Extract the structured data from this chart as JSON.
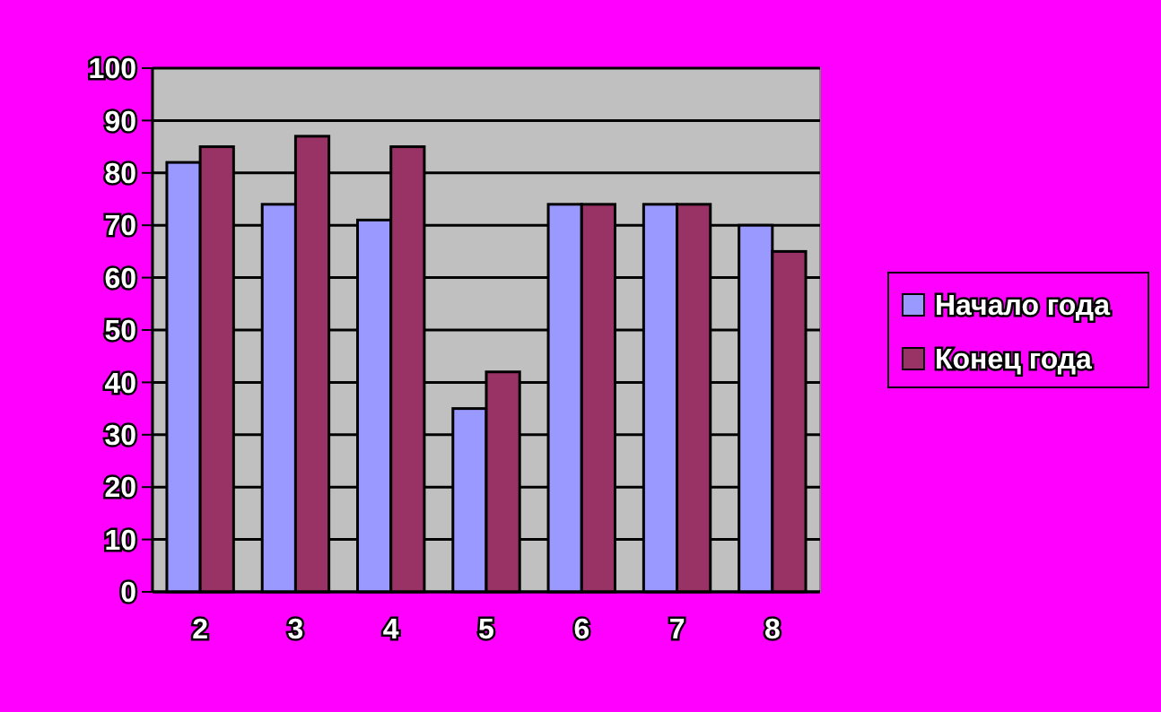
{
  "chart_data": {
    "type": "bar",
    "categories": [
      "2",
      "3",
      "4",
      "5",
      "6",
      "7",
      "8"
    ],
    "series": [
      {
        "name": "Начало года",
        "color": "#9999ff",
        "values": [
          82,
          74,
          71,
          35,
          74,
          74,
          70
        ]
      },
      {
        "name": "Конец года",
        "color": "#993366",
        "values": [
          85,
          87,
          85,
          42,
          74,
          74,
          65
        ]
      }
    ],
    "ylim": [
      0,
      100
    ],
    "yticks": [
      0,
      10,
      20,
      30,
      40,
      50,
      60,
      70,
      80,
      90,
      100
    ],
    "grid": "y",
    "legend": "right"
  }
}
